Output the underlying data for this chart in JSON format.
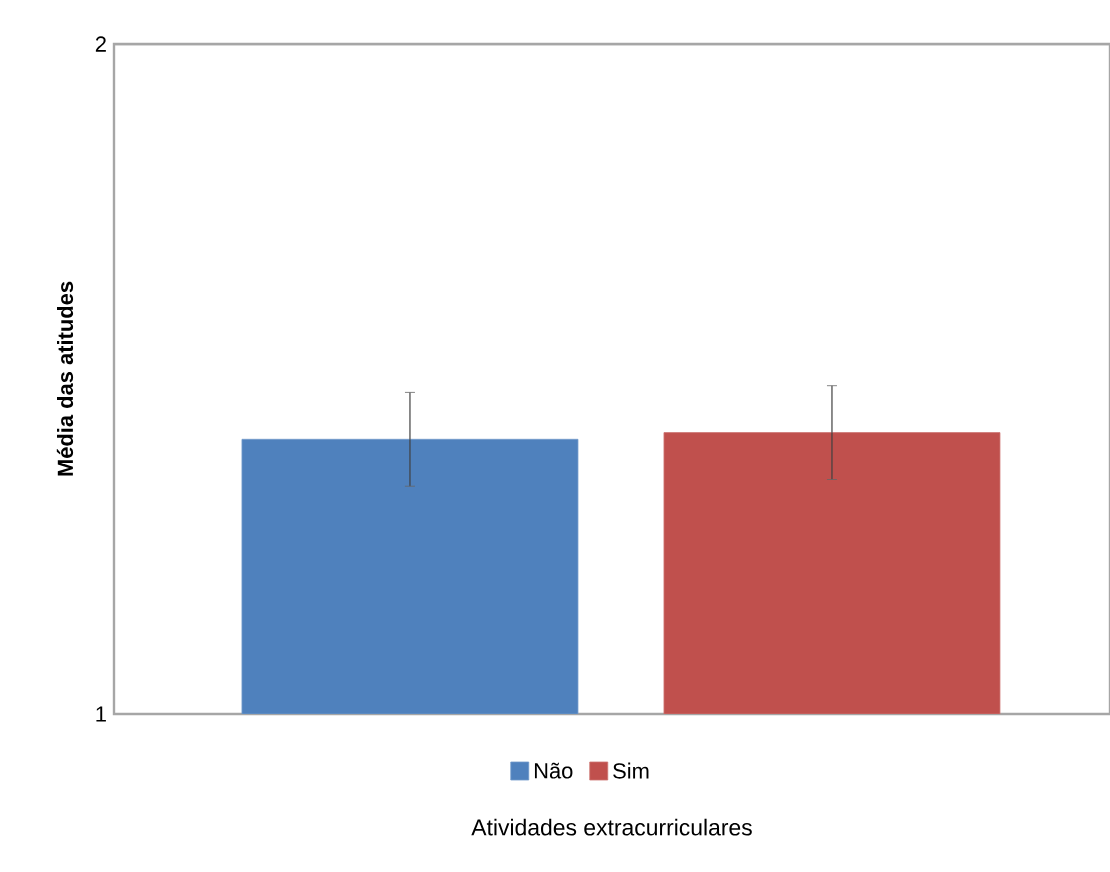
{
  "chart_data": {
    "type": "bar",
    "xlabel": "Atividades extracurriculares",
    "ylabel": "Média das atitudes",
    "categories": [
      null
    ],
    "series": [
      {
        "name": "Não",
        "color": "#4f81bd",
        "values": [
          1.41
        ],
        "errors": [
          [
            1.34,
            1.48
          ]
        ]
      },
      {
        "name": "Sim",
        "color": "#c0504d",
        "values": [
          1.42
        ],
        "errors": [
          [
            1.35,
            1.49
          ]
        ]
      }
    ],
    "ylim": [
      1,
      2
    ],
    "yticks": [
      1,
      2
    ],
    "legend": "bottom"
  }
}
